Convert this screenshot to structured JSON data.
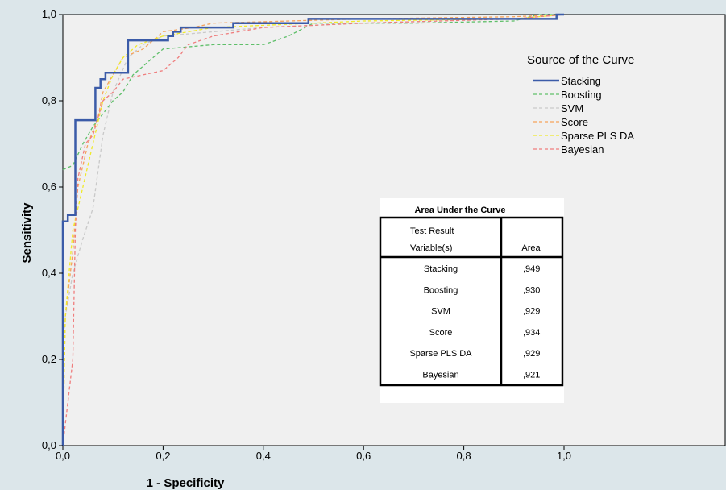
{
  "chart_data": {
    "type": "line",
    "xlabel": "1 - Specificity",
    "ylabel": "Sensitivity",
    "xlim": [
      0,
      1.35
    ],
    "ylim": [
      0,
      1
    ],
    "xticks": [
      {
        "value": 0,
        "label": "0,0"
      },
      {
        "value": 0.2,
        "label": "0,2"
      },
      {
        "value": 0.4,
        "label": "0,4"
      },
      {
        "value": 0.6,
        "label": "0,6"
      },
      {
        "value": 0.8,
        "label": "0,8"
      },
      {
        "value": 1.0,
        "label": "1,0"
      }
    ],
    "yticks": [
      {
        "value": 0,
        "label": "0,0"
      },
      {
        "value": 0.2,
        "label": "0,2"
      },
      {
        "value": 0.4,
        "label": "0,4"
      },
      {
        "value": 0.6,
        "label": "0,6"
      },
      {
        "value": 0.8,
        "label": "0,8"
      },
      {
        "value": 1.0,
        "label": "1,0"
      }
    ],
    "grid": false,
    "legend": {
      "title": "Source of the Curve",
      "position": "top-right"
    },
    "series": [
      {
        "name": "Stacking",
        "color": "#3b5ba8",
        "style": "solid",
        "points": [
          [
            0,
            0
          ],
          [
            0,
            0.52
          ],
          [
            0.01,
            0.52
          ],
          [
            0.01,
            0.535
          ],
          [
            0.025,
            0.535
          ],
          [
            0.025,
            0.755
          ],
          [
            0.065,
            0.755
          ],
          [
            0.065,
            0.83
          ],
          [
            0.075,
            0.83
          ],
          [
            0.075,
            0.85
          ],
          [
            0.085,
            0.85
          ],
          [
            0.085,
            0.865
          ],
          [
            0.13,
            0.865
          ],
          [
            0.13,
            0.94
          ],
          [
            0.21,
            0.94
          ],
          [
            0.21,
            0.95
          ],
          [
            0.22,
            0.95
          ],
          [
            0.22,
            0.96
          ],
          [
            0.235,
            0.96
          ],
          [
            0.235,
            0.97
          ],
          [
            0.34,
            0.97
          ],
          [
            0.34,
            0.98
          ],
          [
            0.49,
            0.98
          ],
          [
            0.49,
            0.99
          ],
          [
            0.985,
            0.99
          ],
          [
            0.985,
            1
          ],
          [
            1,
            1
          ]
        ]
      },
      {
        "name": "Boosting",
        "color": "#5fbf6a",
        "style": "dashed",
        "points": [
          [
            0,
            0.64
          ],
          [
            0.02,
            0.65
          ],
          [
            0.04,
            0.7
          ],
          [
            0.06,
            0.74
          ],
          [
            0.08,
            0.77
          ],
          [
            0.1,
            0.8
          ],
          [
            0.12,
            0.82
          ],
          [
            0.14,
            0.86
          ],
          [
            0.17,
            0.89
          ],
          [
            0.2,
            0.92
          ],
          [
            0.3,
            0.93
          ],
          [
            0.4,
            0.93
          ],
          [
            0.45,
            0.95
          ],
          [
            0.5,
            0.98
          ],
          [
            0.7,
            0.98
          ],
          [
            0.9,
            0.985
          ],
          [
            0.95,
            1
          ],
          [
            1,
            1
          ]
        ]
      },
      {
        "name": "SVM",
        "color": "#c9c9c9",
        "style": "dashed",
        "points": [
          [
            0,
            0.22
          ],
          [
            0.005,
            0.3
          ],
          [
            0.02,
            0.4
          ],
          [
            0.04,
            0.48
          ],
          [
            0.06,
            0.55
          ],
          [
            0.08,
            0.72
          ],
          [
            0.1,
            0.82
          ],
          [
            0.13,
            0.9
          ],
          [
            0.16,
            0.93
          ],
          [
            0.2,
            0.95
          ],
          [
            0.3,
            0.96
          ],
          [
            0.4,
            0.97
          ],
          [
            0.6,
            0.98
          ],
          [
            0.9,
            0.99
          ],
          [
            1,
            1
          ]
        ]
      },
      {
        "name": "Score",
        "color": "#f5a25a",
        "style": "dashed",
        "points": [
          [
            0,
            0
          ],
          [
            0.005,
            0.3
          ],
          [
            0.02,
            0.45
          ],
          [
            0.03,
            0.6
          ],
          [
            0.05,
            0.7
          ],
          [
            0.07,
            0.76
          ],
          [
            0.08,
            0.82
          ],
          [
            0.1,
            0.86
          ],
          [
            0.12,
            0.9
          ],
          [
            0.16,
            0.92
          ],
          [
            0.2,
            0.96
          ],
          [
            0.26,
            0.97
          ],
          [
            0.3,
            0.98
          ],
          [
            0.6,
            0.99
          ],
          [
            0.9,
            0.995
          ],
          [
            1,
            1
          ]
        ]
      },
      {
        "name": "Sparse PLS DA",
        "color": "#f0ea2a",
        "style": "dashed",
        "points": [
          [
            0,
            0
          ],
          [
            0.005,
            0.3
          ],
          [
            0.02,
            0.5
          ],
          [
            0.04,
            0.6
          ],
          [
            0.06,
            0.7
          ],
          [
            0.08,
            0.8
          ],
          [
            0.1,
            0.86
          ],
          [
            0.12,
            0.9
          ],
          [
            0.15,
            0.93
          ],
          [
            0.2,
            0.95
          ],
          [
            0.3,
            0.97
          ],
          [
            0.6,
            0.985
          ],
          [
            0.9,
            0.99
          ],
          [
            1,
            1
          ]
        ]
      },
      {
        "name": "Bayesian",
        "color": "#ef7d7d",
        "style": "dashed",
        "points": [
          [
            0,
            0
          ],
          [
            0.02,
            0.2
          ],
          [
            0.025,
            0.5
          ],
          [
            0.03,
            0.62
          ],
          [
            0.045,
            0.7
          ],
          [
            0.06,
            0.72
          ],
          [
            0.08,
            0.8
          ],
          [
            0.1,
            0.82
          ],
          [
            0.12,
            0.85
          ],
          [
            0.16,
            0.86
          ],
          [
            0.2,
            0.87
          ],
          [
            0.23,
            0.9
          ],
          [
            0.25,
            0.93
          ],
          [
            0.3,
            0.95
          ],
          [
            0.4,
            0.97
          ],
          [
            0.6,
            0.98
          ],
          [
            0.9,
            0.99
          ],
          [
            1,
            1
          ]
        ]
      }
    ],
    "auc_table": {
      "title": "Area Under the Curve",
      "header_var_line1": "Test Result",
      "header_var_line2": "Variable(s)",
      "header_area": "Area",
      "rows": [
        {
          "variable": "Stacking",
          "area": ",949"
        },
        {
          "variable": "Boosting",
          "area": ",930"
        },
        {
          "variable": "SVM",
          "area": ",929"
        },
        {
          "variable": "Score",
          "area": ",934"
        },
        {
          "variable": "Sparse PLS DA",
          "area": ",929"
        },
        {
          "variable": "Bayesian",
          "area": ",921"
        }
      ]
    }
  }
}
